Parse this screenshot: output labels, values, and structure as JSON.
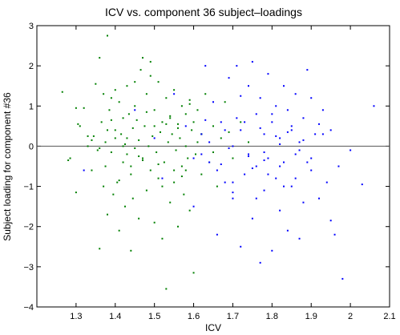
{
  "chart_data": {
    "type": "scatter",
    "title": "ICV vs. component 36 subject–loadings",
    "xlabel": "ICV",
    "ylabel": "Subject loading for component #36",
    "xlim": [
      1.2,
      2.1
    ],
    "ylim": [
      -4,
      3
    ],
    "xticks": [
      "1.3",
      "1.4",
      "1.5",
      "1.6",
      "1.7",
      "1.8",
      "1.9",
      "2",
      "2.1"
    ],
    "yticks": [
      "−4",
      "−3",
      "−2",
      "−1",
      "0",
      "1",
      "2",
      "3"
    ],
    "grid": false,
    "legend": "none",
    "reference_line_y": 0,
    "series": [
      {
        "color": "#008000",
        "x": [
          1.265,
          1.28,
          1.285,
          1.3,
          1.305,
          1.31,
          1.32,
          1.33,
          1.34,
          1.345,
          1.35,
          1.355,
          1.36,
          1.36,
          1.365,
          1.37,
          1.37,
          1.375,
          1.375,
          1.38,
          1.38,
          1.385,
          1.39,
          1.39,
          1.395,
          1.4,
          1.4,
          1.405,
          1.41,
          1.41,
          1.415,
          1.42,
          1.42,
          1.425,
          1.425,
          1.43,
          1.43,
          1.435,
          1.44,
          1.44,
          1.445,
          1.445,
          1.45,
          1.45,
          1.455,
          1.46,
          1.46,
          1.465,
          1.47,
          1.47,
          1.475,
          1.48,
          1.48,
          1.485,
          1.49,
          1.49,
          1.495,
          1.5,
          1.5,
          1.505,
          1.51,
          1.51,
          1.515,
          1.52,
          1.52,
          1.525,
          1.53,
          1.53,
          1.535,
          1.54,
          1.54,
          1.545,
          1.55,
          1.55,
          1.555,
          1.56,
          1.56,
          1.565,
          1.57,
          1.57,
          1.575,
          1.58,
          1.58,
          1.585,
          1.59,
          1.59,
          1.595,
          1.6,
          1.6,
          1.605,
          1.61,
          1.62,
          1.62,
          1.63,
          1.64,
          1.65,
          1.66,
          1.67,
          1.68,
          1.7,
          1.72,
          1.74,
          1.3,
          1.34,
          1.38,
          1.42,
          1.46,
          1.5,
          1.54,
          1.58,
          1.62,
          1.44,
          1.48,
          1.52,
          1.56,
          1.4,
          1.36,
          1.33,
          1.47,
          1.53,
          1.57,
          1.61,
          1.65,
          1.69,
          1.49,
          1.51,
          1.43,
          1.45,
          1.55,
          1.59,
          1.39,
          1.41
        ],
        "y": [
          1.35,
          -0.35,
          -0.3,
          0.95,
          0.55,
          0.5,
          0.95,
          0.0,
          -0.6,
          0.25,
          1.55,
          -0.1,
          2.2,
          -2.55,
          0.6,
          -1.0,
          1.3,
          0.1,
          -0.5,
          2.75,
          -1.7,
          0.9,
          -0.15,
          1.2,
          -1.2,
          0.4,
          0.2,
          -0.9,
          1.1,
          -2.1,
          0.3,
          -0.4,
          0.7,
          -1.5,
          0.05,
          1.5,
          -0.2,
          0.8,
          -2.6,
          -0.7,
          0.45,
          -1.3,
          1.0,
          -0.05,
          0.65,
          -1.8,
          0.15,
          1.9,
          -0.3,
          2.2,
          0.5,
          -1.1,
          1.3,
          0.0,
          -0.6,
          2.1,
          0.25,
          -1.9,
          0.9,
          -0.15,
          1.6,
          -0.8,
          0.35,
          -2.3,
          0.6,
          -0.4,
          1.2,
          -3.55,
          0.1,
          -1.4,
          0.75,
          0.3,
          -0.9,
          1.4,
          -0.1,
          0.55,
          -2.0,
          0.2,
          1.0,
          -0.5,
          -1.2,
          0.8,
          0.0,
          -0.3,
          1.15,
          -1.6,
          0.4,
          -3.15,
          0.6,
          -0.2,
          0.9,
          -0.7,
          0.3,
          1.3,
          -0.4,
          0.5,
          -1.0,
          0.2,
          1.1,
          -0.3,
          0.6,
          0.1,
          -1.15,
          0.15,
          0.4,
          0.0,
          -0.25,
          0.5,
          0.7,
          -0.6,
          0.3,
          -0.5,
          0.85,
          -1.0,
          0.45,
          1.4,
          -0.05,
          0.25,
          -0.35,
          0.55,
          -0.75,
          0.1,
          -0.15,
          0.35,
          1.75,
          -0.45,
          0.2,
          1.6,
          -0.6,
          1.05,
          0.65,
          -0.85
        ]
      },
      {
        "color": "#0000ff",
        "x": [
          1.32,
          1.45,
          1.5,
          1.52,
          1.55,
          1.58,
          1.6,
          1.62,
          1.63,
          1.64,
          1.65,
          1.66,
          1.67,
          1.68,
          1.69,
          1.7,
          1.7,
          1.71,
          1.72,
          1.72,
          1.73,
          1.74,
          1.74,
          1.75,
          1.75,
          1.76,
          1.76,
          1.77,
          1.77,
          1.78,
          1.78,
          1.79,
          1.79,
          1.8,
          1.8,
          1.81,
          1.81,
          1.82,
          1.82,
          1.83,
          1.83,
          1.84,
          1.84,
          1.85,
          1.85,
          1.86,
          1.86,
          1.87,
          1.87,
          1.88,
          1.88,
          1.89,
          1.9,
          1.9,
          1.91,
          1.92,
          1.93,
          1.94,
          1.95,
          1.95,
          1.96,
          1.97,
          1.98,
          2.0,
          2.03,
          2.06,
          1.62,
          1.66,
          1.68,
          1.7,
          1.73,
          1.76,
          1.78,
          1.8,
          1.82,
          1.84,
          1.86,
          1.88,
          1.9,
          1.92,
          1.64,
          1.67,
          1.71,
          1.74,
          1.77,
          1.79,
          1.81,
          1.83,
          1.85,
          1.87,
          1.89,
          1.6,
          1.63,
          1.69,
          1.72,
          1.75,
          1.93,
          1.7,
          1.78,
          1.82
        ],
        "y": [
          -0.6,
          0.9,
          0.2,
          -0.8,
          1.3,
          0.5,
          -1.5,
          0.3,
          2.0,
          -0.4,
          1.1,
          -2.2,
          0.6,
          -0.9,
          1.7,
          0.0,
          -1.3,
          2.0,
          0.4,
          -2.5,
          -0.7,
          1.5,
          -0.2,
          2.1,
          -1.8,
          0.8,
          -0.5,
          1.2,
          -2.9,
          0.3,
          -1.1,
          1.8,
          -0.3,
          0.6,
          -2.6,
          1.0,
          -0.8,
          0.2,
          -1.6,
          1.5,
          -0.4,
          0.9,
          -2.1,
          0.4,
          -1.0,
          1.3,
          -0.2,
          0.1,
          -2.3,
          0.7,
          -1.4,
          1.9,
          -0.6,
          1.2,
          0.3,
          -1.3,
          0.9,
          -0.9,
          -1.85,
          0.4,
          -2.2,
          -0.5,
          -3.3,
          -0.1,
          -0.95,
          1.0,
          -0.2,
          -0.6,
          0.4,
          -0.9,
          0.6,
          -1.3,
          -0.15,
          0.8,
          -0.5,
          0.35,
          -0.8,
          0.15,
          -0.3,
          0.55,
          0.1,
          -0.45,
          0.7,
          -0.25,
          0.45,
          -0.7,
          0.25,
          -1.0,
          0.5,
          -0.1,
          -0.4,
          -0.3,
          0.65,
          -0.05,
          1.25,
          -0.55,
          0.3,
          -1.15,
          -0.35,
          0.05
        ]
      }
    ]
  }
}
